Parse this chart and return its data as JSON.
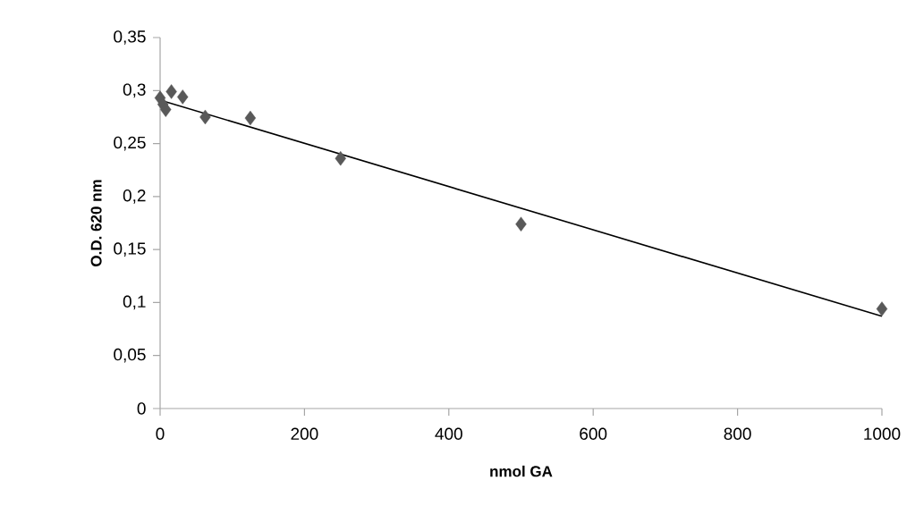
{
  "chart_data": {
    "type": "scatter",
    "xlabel": "nmol GA",
    "ylabel": "O.D. 620 nm",
    "series": [
      {
        "color": "#595959",
        "marker": "diamond",
        "x": [
          0,
          3.9,
          7.8,
          15.6,
          31.25,
          62.5,
          125,
          250,
          500,
          1000
        ],
        "values": [
          0.293,
          0.287,
          0.282,
          0.299,
          0.294,
          0.275,
          0.274,
          0.236,
          0.174,
          0.094
        ]
      },
      {
        "type": "line",
        "color": "#000000",
        "marker": "none",
        "x": [
          0,
          1000
        ],
        "values": [
          0.291,
          0.087
        ]
      }
    ],
    "xlim": [
      0,
      1000
    ],
    "ylim": [
      0,
      0.35
    ],
    "xticks": [
      0,
      200,
      400,
      600,
      800,
      1000
    ],
    "yticks": [
      0,
      {
        "value": 0.05,
        "label": "0,05"
      },
      {
        "value": 0.1,
        "label": "0,1"
      },
      {
        "value": 0.15,
        "label": "0,15"
      },
      {
        "value": 0.2,
        "label": "0,2"
      },
      {
        "value": 0.25,
        "label": "0,25"
      },
      {
        "value": 0.3,
        "label": "0,3"
      },
      {
        "value": 0.35,
        "label": "0,35"
      }
    ]
  }
}
